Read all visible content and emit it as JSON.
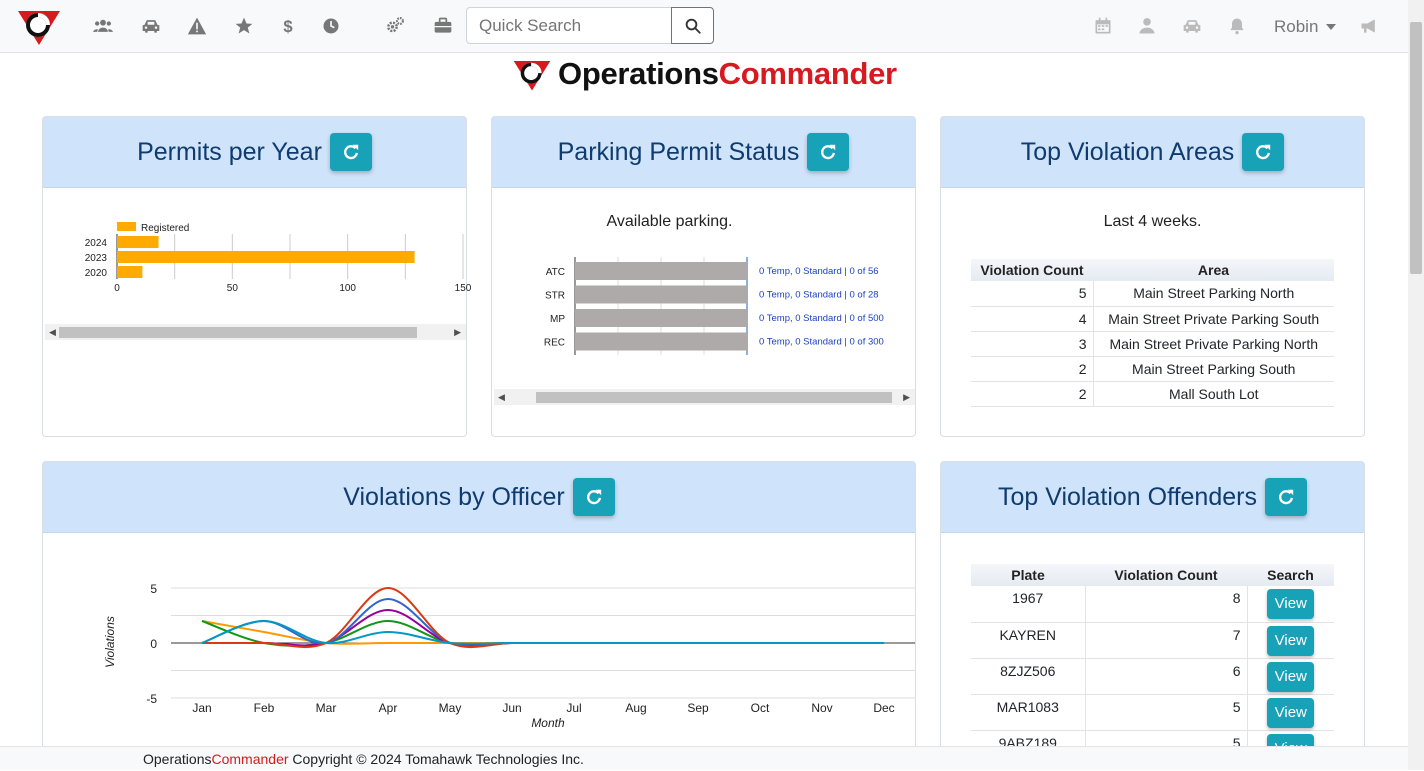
{
  "nav": {
    "search_placeholder": "Quick Search",
    "user_name": "Robin"
  },
  "brand": {
    "part1": "Operations",
    "part2": "Commander"
  },
  "permits_card": {
    "title": "Permits per Year",
    "chart_data": {
      "type": "bar",
      "orientation": "horizontal",
      "categories": [
        "2024",
        "2023",
        "2020"
      ],
      "series": [
        {
          "name": "Registered",
          "values": [
            18,
            129,
            11
          ]
        }
      ],
      "xlim": [
        0,
        150
      ],
      "xticks": [
        "0",
        "50",
        "100",
        "150"
      ],
      "color": "#ffaa00"
    }
  },
  "status_card": {
    "title": "Parking Permit Status",
    "subtitle": "Available parking.",
    "chart_data": {
      "type": "bar",
      "orientation": "horizontal",
      "stacked": true,
      "categories": [
        "ATC",
        "STR",
        "MP",
        "REC"
      ],
      "values": [
        56,
        28,
        500,
        300
      ],
      "data_labels": [
        "0 Temp, 0 Standard | 0 of 56",
        "0 Temp, 0 Standard | 0 of 28",
        "0 Temp, 0 Standard | 0 of 500",
        "0 Temp, 0 Standard | 0 of 300"
      ],
      "color": "#aeaaaa"
    }
  },
  "areas_card": {
    "title": "Top Violation Areas",
    "subtitle": "Last 4 weeks.",
    "columns": [
      "Violation Count",
      "Area"
    ],
    "rows": [
      {
        "count": "5",
        "area": "Main Street Parking North"
      },
      {
        "count": "4",
        "area": "Main Street Private Parking South"
      },
      {
        "count": "3",
        "area": "Main Street Private Parking North"
      },
      {
        "count": "2",
        "area": "Main Street Parking South"
      },
      {
        "count": "2",
        "area": "Mall South Lot"
      }
    ]
  },
  "officer_card": {
    "title": "Violations by Officer",
    "chart_data": {
      "type": "line",
      "categories": [
        "Jan",
        "Feb",
        "Mar",
        "Apr",
        "May",
        "Jun",
        "Jul",
        "Aug",
        "Sep",
        "Oct",
        "Nov",
        "Dec"
      ],
      "xlabel": "Month",
      "ylabel": "Violations",
      "ylim": [
        -5,
        5
      ],
      "yticks": [
        "5",
        "0",
        "-5"
      ],
      "series": [
        {
          "color": "#ff9900",
          "values": [
            2,
            1,
            0,
            0,
            0,
            0,
            0,
            0,
            0,
            0,
            0,
            0
          ]
        },
        {
          "color": "#109618",
          "values": [
            2,
            0,
            0,
            2,
            0,
            0,
            0,
            0,
            0,
            0,
            0,
            0
          ]
        },
        {
          "color": "#990099",
          "values": [
            0,
            0,
            0,
            3,
            0,
            0,
            0,
            0,
            0,
            0,
            0,
            0
          ]
        },
        {
          "color": "#3366cc",
          "values": [
            0,
            2,
            0,
            4,
            0,
            0,
            0,
            0,
            0,
            0,
            0,
            0
          ]
        },
        {
          "color": "#dc3912",
          "values": [
            0,
            0,
            0,
            5,
            0,
            0,
            0,
            0,
            0,
            0,
            0,
            0
          ]
        },
        {
          "color": "#0099c6",
          "values": [
            0,
            2,
            0,
            1,
            0,
            0,
            0,
            0,
            0,
            0,
            0,
            0
          ]
        }
      ]
    }
  },
  "offenders_card": {
    "title": "Top Violation Offenders",
    "columns": [
      "Plate",
      "Violation Count",
      "Search"
    ],
    "view_label": "View",
    "rows": [
      {
        "plate": "1967",
        "count": "8"
      },
      {
        "plate": "KAYREN",
        "count": "7"
      },
      {
        "plate": "8ZJZ506",
        "count": "6"
      },
      {
        "plate": "MAR1083",
        "count": "5"
      },
      {
        "plate": "9ABZ189",
        "count": "5"
      }
    ]
  },
  "footer": {
    "part1": "Operations",
    "part2": "Commander",
    "copyright": " Copyright © 2024 Tomahawk Technologies Inc."
  }
}
